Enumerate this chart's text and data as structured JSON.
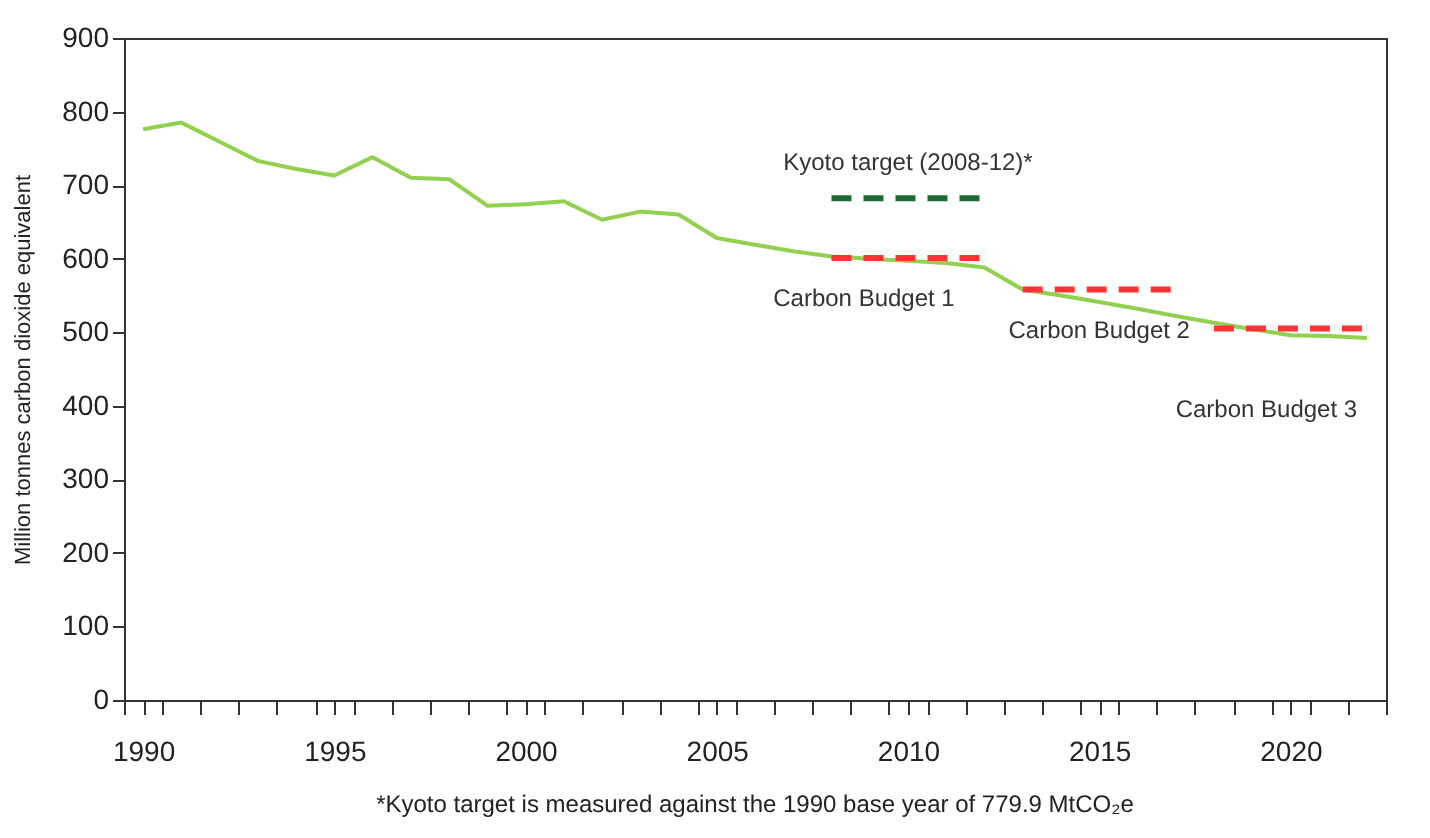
{
  "chart_data": {
    "type": "line",
    "ylabel": "Million tonnes carbon dioxide equivalent",
    "x": [
      1990,
      1991,
      1992,
      1993,
      1994,
      1995,
      1996,
      1997,
      1998,
      1999,
      2000,
      2001,
      2002,
      2003,
      2004,
      2005,
      2006,
      2007,
      2008,
      2009,
      2010,
      2011,
      2012,
      2013,
      2014,
      2015,
      2016,
      2017,
      2018,
      2019,
      2020,
      2021,
      2022
    ],
    "series": [
      {
        "color": "#92d050",
        "values": [
          776,
          785,
          759,
          733,
          722,
          713,
          738,
          710,
          708,
          672,
          674,
          678,
          653,
          664,
          660,
          628,
          619,
          610,
          603,
          600,
          597,
          594,
          588,
          558,
          550,
          541,
          532,
          522,
          513,
          504,
          496,
          495,
          492
        ]
      },
      {
        "name": "Kyoto target (2008-12)*",
        "color": "#1e6b30",
        "line_style": "dashed",
        "x": [
          2008,
          2012
        ],
        "values": [
          682,
          682
        ]
      },
      {
        "name": "Carbon Budget 1",
        "color": "#ff3333",
        "line_style": "dashed",
        "x": [
          2008,
          2012
        ],
        "values": [
          601,
          601
        ]
      },
      {
        "name": "Carbon Budget 2",
        "color": "#ff3333",
        "line_style": "dashed",
        "x": [
          2013,
          2017
        ],
        "values": [
          558,
          558
        ]
      },
      {
        "name": "Carbon Budget 3",
        "color": "#ff3333",
        "line_style": "dashed",
        "x": [
          2018,
          2022
        ],
        "values": [
          505,
          505
        ]
      }
    ],
    "xlim": [
      1989.5,
      2022.5
    ],
    "xticks": [
      {
        "value": 1989.5,
        "label": null
      },
      {
        "value": 1990,
        "label": "1990"
      },
      {
        "value": 1990.5,
        "label": null
      },
      {
        "value": 1991.5,
        "label": null
      },
      {
        "value": 1992.5,
        "label": null
      },
      {
        "value": 1993.5,
        "label": null
      },
      {
        "value": 1994.5,
        "label": null
      },
      {
        "value": 1995,
        "label": "1995"
      },
      {
        "value": 1995.5,
        "label": null
      },
      {
        "value": 1996.5,
        "label": null
      },
      {
        "value": 1997.5,
        "label": null
      },
      {
        "value": 1998.5,
        "label": null
      },
      {
        "value": 1999.5,
        "label": null
      },
      {
        "value": 2000,
        "label": "2000"
      },
      {
        "value": 2000.5,
        "label": null
      },
      {
        "value": 2001.5,
        "label": null
      },
      {
        "value": 2002.5,
        "label": null
      },
      {
        "value": 2003.5,
        "label": null
      },
      {
        "value": 2004.5,
        "label": null
      },
      {
        "value": 2005,
        "label": "2005"
      },
      {
        "value": 2005.5,
        "label": null
      },
      {
        "value": 2006.5,
        "label": null
      },
      {
        "value": 2007.5,
        "label": null
      },
      {
        "value": 2008.5,
        "label": null
      },
      {
        "value": 2009.5,
        "label": null
      },
      {
        "value": 2010,
        "label": "2010"
      },
      {
        "value": 2010.5,
        "label": null
      },
      {
        "value": 2011.5,
        "label": null
      },
      {
        "value": 2012.5,
        "label": null
      },
      {
        "value": 2013.5,
        "label": null
      },
      {
        "value": 2014.5,
        "label": null
      },
      {
        "value": 2015,
        "label": "2015"
      },
      {
        "value": 2015.5,
        "label": null
      },
      {
        "value": 2016.5,
        "label": null
      },
      {
        "value": 2017.5,
        "label": null
      },
      {
        "value": 2018.5,
        "label": null
      },
      {
        "value": 2019.5,
        "label": null
      },
      {
        "value": 2020,
        "label": "2020"
      },
      {
        "value": 2020.5,
        "label": null
      },
      {
        "value": 2021.5,
        "label": null
      },
      {
        "value": 2022.5,
        "label": null
      }
    ],
    "ylim": [
      0,
      900
    ],
    "yticks": [
      0,
      100,
      200,
      300,
      400,
      500,
      600,
      700,
      800,
      900
    ],
    "grid": false,
    "marker": "none",
    "line_style": "solid",
    "annotations": [
      "*Kyoto target is measured against the 1990 base year of 779.9 MtCO₂e"
    ]
  }
}
